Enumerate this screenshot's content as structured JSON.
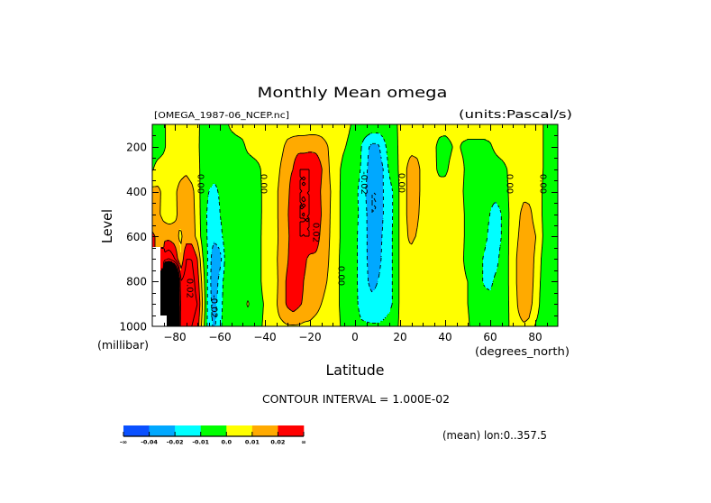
{
  "chart_data": {
    "type": "heatmap",
    "style": "filled-contour",
    "title": "Monthly Mean omega",
    "subtitle_left": "[OMEGA_1987-06_NCEP.nc]",
    "subtitle_right": "(units:Pascal/s)",
    "xlabel": "Latitude",
    "xunits": "(degrees_north)",
    "ylabel": "Level",
    "yunits": "(millibar)",
    "xlim": [
      -90,
      90
    ],
    "ylim": [
      1000,
      100
    ],
    "xticks": [
      -80,
      -60,
      -40,
      -20,
      0,
      20,
      40,
      60,
      80
    ],
    "xtick_labels": [
      "−80",
      "−60",
      "−40",
      "−20",
      "0",
      "20",
      "40",
      "60",
      "80"
    ],
    "yticks": [
      200,
      400,
      600,
      800,
      1000
    ],
    "ytick_labels": [
      "200",
      "400",
      "600",
      "800",
      "1000"
    ],
    "x_minor_step": 5,
    "y_minor_step": 50,
    "footer": "CONTOUR INTERVAL = 1.000E-02",
    "contour_interval": 0.01,
    "note": "(mean) lon:0..357.5",
    "fill_levels": [
      -0.04,
      -0.02,
      -0.01,
      0.0,
      0.01,
      0.02
    ],
    "colorbar": {
      "labels": [
        "-∞",
        "-0.04",
        "-0.02",
        "-0.01",
        "0.0",
        "0.01",
        "0.02",
        "∞"
      ],
      "colors": [
        "#0a50ff",
        "#00a8ff",
        "#00ffff",
        "#00ff00",
        "#ffff00",
        "#ffaa00",
        "#ff0000"
      ]
    },
    "contour_labels": [
      {
        "text": "0.00",
        "lat": -68.8,
        "level": 365
      },
      {
        "text": "0.00",
        "lat": -40.8,
        "level": 365
      },
      {
        "text": "-0.02",
        "lat": 3.8,
        "level": 361
      },
      {
        "text": "0.00",
        "lat": 20.4,
        "level": 361
      },
      {
        "text": "0.00",
        "lat": 68.4,
        "level": 365
      },
      {
        "text": "0.00",
        "lat": 83.2,
        "level": 365
      },
      {
        "text": "0.02",
        "lat": -17.6,
        "level": 582
      },
      {
        "text": "0.00",
        "lat": -6.4,
        "level": 775
      },
      {
        "text": "0.02",
        "lat": -73.6,
        "level": 831
      },
      {
        "text": "-0.02",
        "lat": -62.8,
        "level": 912
      }
    ],
    "lat": [
      -90,
      -87.5,
      -85,
      -82.5,
      -80,
      -77.5,
      -75,
      -72.5,
      -70,
      -67.5,
      -65,
      -62.5,
      -60,
      -57.5,
      -55,
      -52.5,
      -50,
      -47.5,
      -45,
      -42.5,
      -40,
      -37.5,
      -35,
      -32.5,
      -30,
      -27.5,
      -25,
      -22.5,
      -20,
      -17.5,
      -15,
      -12.5,
      -10,
      -7.5,
      -5,
      -2.5,
      0,
      2.5,
      5,
      7.5,
      10,
      12.5,
      15,
      17.5,
      20,
      22.5,
      25,
      27.5,
      30,
      32.5,
      35,
      37.5,
      40,
      42.5,
      45,
      47.5,
      50,
      52.5,
      55,
      57.5,
      60,
      62.5,
      65,
      67.5,
      70,
      72.5,
      75,
      77.5,
      80,
      82.5,
      85,
      87.5,
      90
    ],
    "levels": [
      100,
      200,
      300,
      400,
      500,
      600,
      700,
      800,
      900,
      1000
    ],
    "values": [
      [
        -0.004,
        -0.004,
        -0.002,
        0.004,
        0.005,
        0.005,
        0.005,
        0.004,
        0.002,
        -0.003,
        -0.005,
        -0.005,
        -0.004,
        -0.002,
        0.002,
        0.004,
        0.004,
        0.004,
        0.004,
        0.004,
        0.004,
        0.004,
        0.004,
        0.004,
        0.004,
        0.004,
        0.004,
        0.004,
        0.004,
        0.004,
        0.004,
        0.004,
        0.004,
        0.004,
        0.004,
        0.001,
        -0.003,
        -0.004,
        -0.002,
        -0.002,
        -0.002,
        -0.004,
        -0.004,
        -0.002,
        0.002,
        0.004,
        0.004,
        0.004,
        0.004,
        0.004,
        0.004,
        0.004,
        0.004,
        0.004,
        0.004,
        0.004,
        0.004,
        0.004,
        0.004,
        0.004,
        0.004,
        0.004,
        0.004,
        0.004,
        0.004,
        0.004,
        0.004,
        0.004,
        0.004,
        0.002,
        -0.003,
        -0.004,
        -0.004
      ],
      [
        -0.005,
        -0.005,
        -0.002,
        0.004,
        0.005,
        0.005,
        0.006,
        0.005,
        0.002,
        -0.004,
        -0.006,
        -0.006,
        -0.006,
        -0.005,
        -0.005,
        -0.004,
        -0.002,
        0.002,
        0.004,
        0.004,
        0.004,
        0.004,
        0.005,
        0.008,
        0.013,
        0.015,
        0.016,
        0.016,
        0.017,
        0.017,
        0.015,
        0.011,
        0.006,
        0.004,
        0.001,
        -0.002,
        -0.005,
        -0.009,
        -0.017,
        -0.023,
        -0.023,
        -0.014,
        -0.006,
        -0.003,
        0.002,
        0.006,
        0.007,
        0.006,
        0.004,
        0.004,
        0.002,
        -0.003,
        -0.004,
        -0.001,
        0.002,
        -0.001,
        -0.002,
        -0.002,
        -0.002,
        -0.002,
        -0.001,
        0.002,
        0.004,
        0.004,
        0.004,
        0.004,
        0.004,
        0.004,
        0.004,
        0.002,
        -0.003,
        -0.004,
        -0.004
      ],
      [
        -0.001,
        0.004,
        0.005,
        0.005,
        0.005,
        0.006,
        0.008,
        0.005,
        0.003,
        -0.004,
        -0.006,
        -0.007,
        -0.007,
        -0.006,
        -0.006,
        -0.006,
        -0.005,
        -0.005,
        -0.004,
        -0.001,
        0.003,
        0.004,
        0.006,
        0.012,
        0.018,
        0.02,
        0.03,
        0.03,
        0.03,
        0.028,
        0.021,
        0.013,
        0.006,
        0.002,
        -0.003,
        -0.005,
        -0.006,
        -0.01,
        -0.018,
        -0.028,
        -0.028,
        -0.02,
        -0.009,
        -0.004,
        0.002,
        0.009,
        0.015,
        0.014,
        0.006,
        0.004,
        0.002,
        -0.002,
        -0.002,
        0.002,
        0.004,
        0.002,
        -0.003,
        -0.005,
        -0.005,
        -0.005,
        -0.005,
        -0.004,
        -0.003,
        0.0,
        0.004,
        0.004,
        0.004,
        0.004,
        0.004,
        0.002,
        -0.003,
        -0.004,
        -0.004
      ],
      [
        0.013,
        0.012,
        0.008,
        0.005,
        0.008,
        0.014,
        0.016,
        0.013,
        0.005,
        -0.006,
        -0.01,
        -0.012,
        -0.009,
        -0.006,
        -0.006,
        -0.006,
        -0.006,
        -0.006,
        -0.005,
        -0.002,
        0.003,
        0.005,
        0.008,
        0.015,
        0.018,
        0.024,
        0.03,
        0.03,
        0.03,
        0.026,
        0.019,
        0.014,
        0.008,
        0.002,
        -0.004,
        -0.005,
        -0.007,
        -0.013,
        -0.021,
        -0.03,
        -0.03,
        -0.02,
        -0.014,
        -0.008,
        0.002,
        0.009,
        0.015,
        0.014,
        0.006,
        0.004,
        0.004,
        0.004,
        0.004,
        0.004,
        0.004,
        0.001,
        -0.004,
        -0.006,
        -0.007,
        -0.007,
        -0.007,
        -0.006,
        -0.004,
        -0.001,
        0.004,
        0.004,
        0.007,
        0.006,
        0.004,
        0.001,
        -0.004,
        -0.004,
        -0.004
      ],
      [
        0.013,
        0.012,
        0.007,
        0.005,
        0.008,
        0.013,
        0.016,
        0.014,
        0.006,
        -0.006,
        -0.012,
        -0.016,
        -0.01,
        -0.006,
        -0.006,
        -0.006,
        -0.006,
        -0.006,
        -0.005,
        -0.002,
        0.003,
        0.005,
        0.008,
        0.015,
        0.019,
        0.026,
        0.03,
        0.03,
        0.03,
        0.027,
        0.02,
        0.014,
        0.007,
        0.002,
        -0.004,
        -0.006,
        -0.007,
        -0.012,
        -0.019,
        -0.03,
        -0.03,
        -0.02,
        -0.014,
        -0.008,
        0.002,
        0.009,
        0.015,
        0.012,
        0.006,
        0.004,
        0.004,
        0.004,
        0.004,
        0.004,
        0.004,
        0.002,
        -0.003,
        -0.005,
        -0.006,
        -0.008,
        -0.01,
        -0.015,
        -0.01,
        -0.002,
        0.004,
        0.008,
        0.014,
        0.013,
        0.005,
        0.001,
        -0.004,
        -0.004,
        -0.004
      ],
      [
        0.022,
        0.018,
        0.016,
        0.016,
        0.014,
        0.008,
        0.015,
        0.015,
        0.007,
        -0.005,
        -0.012,
        -0.017,
        -0.013,
        -0.006,
        -0.006,
        -0.006,
        -0.006,
        -0.006,
        -0.005,
        -0.002,
        0.004,
        0.005,
        0.008,
        0.014,
        0.018,
        0.025,
        0.03,
        0.03,
        0.03,
        0.025,
        0.018,
        0.013,
        0.007,
        0.002,
        -0.004,
        -0.006,
        -0.008,
        -0.013,
        -0.019,
        -0.027,
        -0.027,
        -0.018,
        -0.013,
        -0.008,
        0.002,
        0.008,
        0.013,
        0.009,
        0.005,
        0.004,
        0.004,
        0.004,
        0.004,
        0.004,
        0.004,
        0.002,
        -0.003,
        -0.005,
        -0.006,
        -0.008,
        -0.012,
        -0.015,
        -0.01,
        -0.002,
        0.005,
        0.01,
        0.016,
        0.016,
        0.011,
        0.002,
        -0.004,
        -0.004,
        -0.004
      ],
      [
        null,
        null,
        0.035,
        0.04,
        0.03,
        0.01,
        0.03,
        0.03,
        0.02,
        0.0,
        -0.012,
        -0.03,
        -0.025,
        -0.007,
        -0.005,
        -0.005,
        -0.005,
        -0.005,
        -0.005,
        -0.002,
        0.004,
        0.005,
        0.009,
        0.014,
        0.019,
        0.026,
        0.028,
        0.022,
        0.017,
        0.018,
        0.016,
        0.012,
        0.006,
        0.001,
        -0.004,
        -0.006,
        -0.008,
        -0.013,
        -0.019,
        -0.026,
        -0.025,
        -0.017,
        -0.013,
        -0.008,
        0.002,
        0.008,
        0.005,
        0.0,
        0.004,
        0.004,
        0.004,
        0.004,
        0.004,
        0.004,
        0.004,
        0.001,
        -0.003,
        -0.006,
        -0.008,
        -0.011,
        -0.015,
        -0.013,
        -0.007,
        -0.002,
        0.006,
        0.012,
        0.016,
        0.016,
        0.008,
        0.0,
        -0.004,
        -0.004,
        -0.004
      ],
      [
        null,
        null,
        0.12,
        0.15,
        0.12,
        0.03,
        0.035,
        0.035,
        0.025,
        0.005,
        -0.014,
        -0.03,
        -0.015,
        -0.006,
        -0.005,
        -0.005,
        -0.005,
        -0.005,
        -0.005,
        -0.002,
        0.004,
        0.005,
        0.008,
        0.015,
        0.022,
        0.028,
        0.026,
        0.019,
        0.017,
        0.016,
        0.014,
        0.01,
        0.006,
        0.001,
        -0.004,
        -0.006,
        -0.008,
        -0.013,
        -0.018,
        -0.024,
        -0.02,
        -0.016,
        -0.013,
        -0.008,
        0.002,
        0.005,
        0.004,
        0.003,
        0.004,
        0.004,
        0.004,
        0.004,
        0.004,
        0.004,
        0.004,
        0.002,
        0.0,
        -0.006,
        -0.008,
        -0.011,
        -0.012,
        -0.008,
        -0.006,
        -0.002,
        0.006,
        0.012,
        0.016,
        0.015,
        0.007,
        -0.001,
        -0.004,
        -0.004,
        -0.004
      ],
      [
        null,
        null,
        0.12,
        0.15,
        0.12,
        0.035,
        0.04,
        0.035,
        0.03,
        0.008,
        -0.015,
        -0.025,
        -0.013,
        -0.006,
        -0.005,
        -0.004,
        -0.003,
        0.001,
        -0.004,
        -0.003,
        0.001,
        0.005,
        0.009,
        0.015,
        0.022,
        0.026,
        0.022,
        0.018,
        0.016,
        0.014,
        0.01,
        0.007,
        0.005,
        0.001,
        -0.004,
        -0.006,
        -0.008,
        -0.012,
        -0.014,
        -0.016,
        -0.016,
        -0.015,
        -0.013,
        -0.008,
        0.002,
        0.004,
        0.004,
        0.004,
        0.004,
        0.004,
        0.004,
        0.004,
        0.004,
        0.004,
        0.004,
        0.002,
        0.0,
        -0.005,
        -0.006,
        -0.007,
        -0.007,
        -0.006,
        -0.005,
        -0.002,
        0.005,
        0.011,
        0.015,
        0.013,
        0.006,
        -0.002,
        -0.004,
        -0.004,
        -0.004
      ],
      [
        null,
        null,
        null,
        0.12,
        0.15,
        0.03,
        0.035,
        0.03,
        0.025,
        0.004,
        -0.015,
        -0.022,
        -0.012,
        -0.006,
        -0.005,
        -0.005,
        -0.005,
        -0.005,
        -0.004,
        -0.002,
        0.002,
        0.004,
        0.008,
        0.008,
        0.009,
        0.009,
        0.009,
        0.008,
        0.008,
        0.006,
        0.005,
        0.004,
        0.003,
        0.002,
        -0.003,
        -0.005,
        -0.007,
        -0.009,
        -0.009,
        -0.009,
        -0.009,
        -0.008,
        -0.006,
        -0.004,
        0.002,
        0.003,
        0.003,
        0.003,
        0.003,
        0.003,
        0.003,
        0.003,
        0.003,
        0.003,
        0.003,
        0.003,
        0.002,
        -0.004,
        -0.005,
        -0.005,
        -0.005,
        -0.005,
        -0.004,
        -0.002,
        0.004,
        0.008,
        0.009,
        0.008,
        -0.001,
        -0.004,
        -0.004,
        -0.004,
        -0.004
      ]
    ]
  }
}
